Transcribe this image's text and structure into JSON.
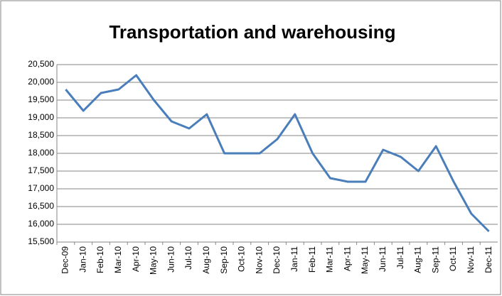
{
  "chart_data": {
    "type": "line",
    "title": "Transportation and warehousing",
    "categories": [
      "Dec-09",
      "Jan-10",
      "Feb-10",
      "Mar-10",
      "Apr-10",
      "May-10",
      "Jun-10",
      "Jul-10",
      "Aug-10",
      "Sep-10",
      "Oct-10",
      "Nov-10",
      "Dec-10",
      "Jan-11",
      "Feb-11",
      "Mar-11",
      "Apr-11",
      "May-11",
      "Jun-11",
      "Jul-11",
      "Aug-11",
      "Sep-11",
      "Oct-11",
      "Nov-11",
      "Dec-11"
    ],
    "values": [
      19800,
      19200,
      19700,
      19800,
      20200,
      19500,
      18900,
      18700,
      19100,
      18000,
      18000,
      18000,
      18400,
      19100,
      18000,
      17300,
      17200,
      17200,
      18100,
      17900,
      17500,
      18200,
      17200,
      16300,
      15800
    ],
    "color": "#4a7ebb",
    "ylim": [
      15500,
      20500
    ],
    "yticks": [
      {
        "value": 15500,
        "label": "15,500"
      },
      {
        "value": 16000,
        "label": "16,000"
      },
      {
        "value": 16500,
        "label": "16,500"
      },
      {
        "value": 17000,
        "label": "17,000"
      },
      {
        "value": 17500,
        "label": "17,500"
      },
      {
        "value": 18000,
        "label": "18,000"
      },
      {
        "value": 18500,
        "label": "18,500"
      },
      {
        "value": 19000,
        "label": "19,000"
      },
      {
        "value": 19500,
        "label": "19,500"
      },
      {
        "value": 20000,
        "label": "20,000"
      },
      {
        "value": 20500,
        "label": "20,500"
      }
    ],
    "grid": true
  }
}
